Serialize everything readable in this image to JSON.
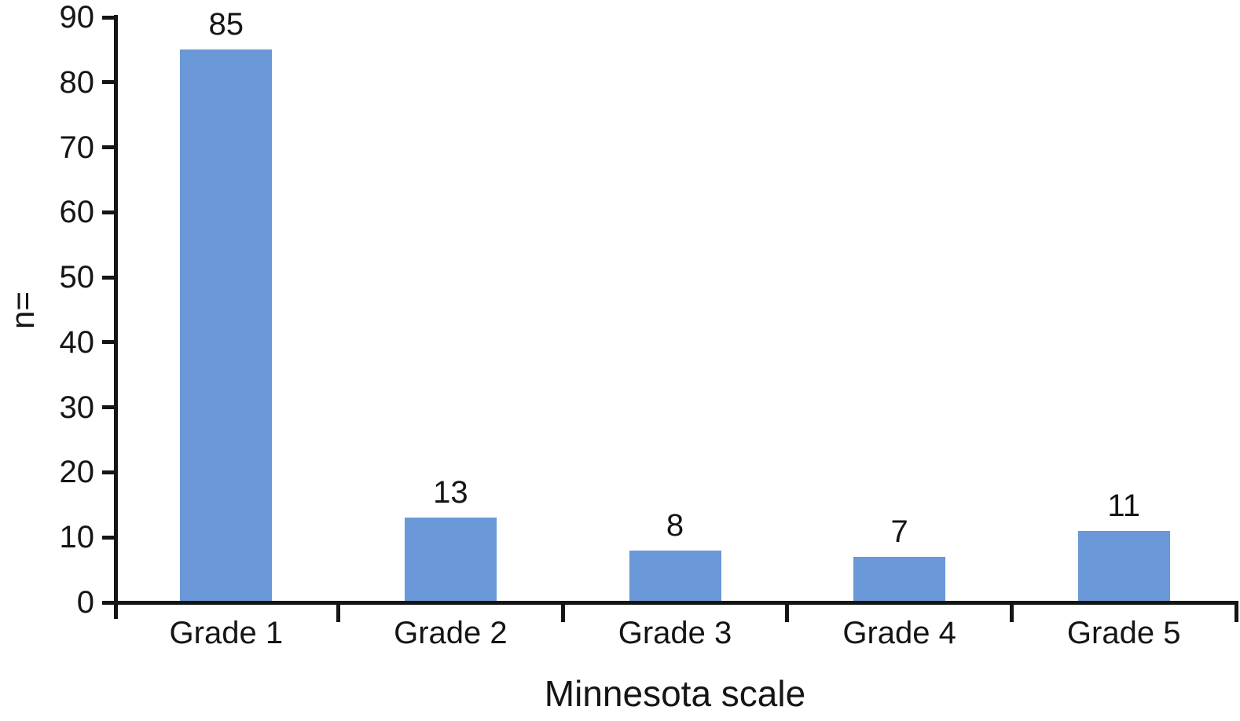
{
  "chart_data": {
    "type": "bar",
    "categories": [
      "Grade 1",
      "Grade 2",
      "Grade 3",
      "Grade 4",
      "Grade 5"
    ],
    "values": [
      85,
      13,
      8,
      7,
      11
    ],
    "bar_labels": [
      "85",
      "13",
      "8",
      "7",
      "11"
    ],
    "title": "",
    "xlabel": "Minnesota scale",
    "ylabel": "n=",
    "ylim": [
      0,
      90
    ],
    "yticks": [
      0,
      10,
      20,
      30,
      40,
      50,
      60,
      70,
      80,
      90
    ],
    "grid": false,
    "legend": false,
    "colors": {
      "bar": "#6A98D8",
      "axis": "#151515",
      "text": "#151515",
      "background": "#FFFFFF"
    }
  }
}
